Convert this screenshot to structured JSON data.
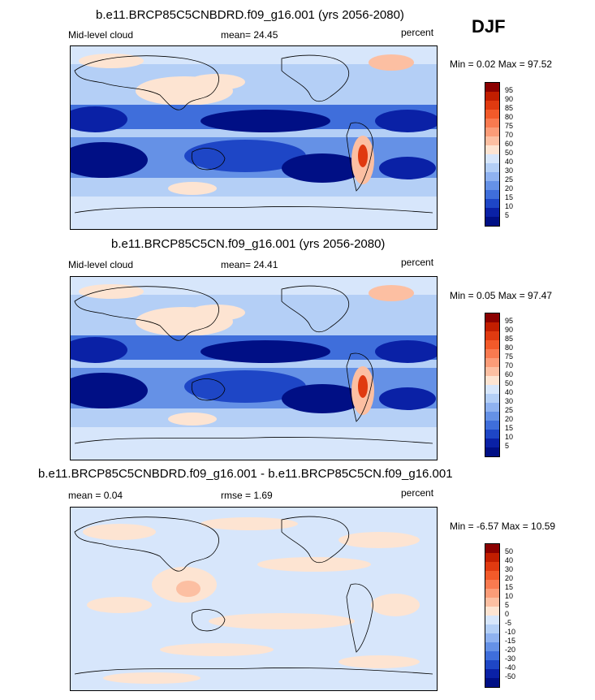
{
  "season": "DJF",
  "panels": [
    {
      "title": "b.e11.BRCP85C5CNBDRD.f09_g16.001 (yrs 2056-2080)",
      "left_label": "Mid-level cloud",
      "center_label": "mean=  24.45",
      "right_label": "percent",
      "minmax": "Min =  0.02 Max =  97.52",
      "colorbar_labels": [
        "95",
        "90",
        "85",
        "80",
        "75",
        "70",
        "60",
        "50",
        "40",
        "30",
        "25",
        "20",
        "15",
        "10",
        "5"
      ]
    },
    {
      "title": "b.e11.BRCP85C5CN.f09_g16.001 (yrs 2056-2080)",
      "left_label": "Mid-level cloud",
      "center_label": "mean=  24.41",
      "right_label": "percent",
      "minmax": "Min =  0.05 Max =  97.47",
      "colorbar_labels": [
        "95",
        "90",
        "85",
        "80",
        "75",
        "70",
        "60",
        "50",
        "40",
        "30",
        "25",
        "20",
        "15",
        "10",
        "5"
      ]
    },
    {
      "title": "b.e11.BRCP85C5CNBDRD.f09_g16.001 - b.e11.BRCP85C5CN.f09_g16.001",
      "left_label": "mean =   0.04",
      "center_label": "rmse =   1.69",
      "right_label": "percent",
      "minmax": "Min =  -6.57 Max =  10.59",
      "colorbar_labels": [
        "50",
        "40",
        "30",
        "20",
        "15",
        "10",
        "5",
        "0",
        "-5",
        "-10",
        "-15",
        "-20",
        "-30",
        "-40",
        "-50"
      ]
    }
  ],
  "colors": {
    "scale": [
      "#8b0000",
      "#c21e00",
      "#e03a10",
      "#f25a2a",
      "#f97a50",
      "#fb9c78",
      "#fcbfa2",
      "#fde4d2",
      "#d7e6fb",
      "#b4cff6",
      "#8fb2f0",
      "#6591e6",
      "#3f6edb",
      "#1e46c6",
      "#0a21a6",
      "#000f85"
    ]
  },
  "chart_data": [
    {
      "type": "heatmap",
      "title": "b.e11.BRCP85C5CNBDRD.f09_g16.001 (yrs 2056-2080)",
      "variable": "Mid-level cloud",
      "units": "percent",
      "mean": 24.45,
      "min": 0.02,
      "max": 97.52,
      "levels": [
        5,
        10,
        15,
        20,
        25,
        30,
        40,
        50,
        60,
        70,
        75,
        80,
        85,
        90,
        95
      ]
    },
    {
      "type": "heatmap",
      "title": "b.e11.BRCP85C5CN.f09_g16.001 (yrs 2056-2080)",
      "variable": "Mid-level cloud",
      "units": "percent",
      "mean": 24.41,
      "min": 0.05,
      "max": 97.47,
      "levels": [
        5,
        10,
        15,
        20,
        25,
        30,
        40,
        50,
        60,
        70,
        75,
        80,
        85,
        90,
        95
      ]
    },
    {
      "type": "heatmap",
      "title": "b.e11.BRCP85C5CNBDRD.f09_g16.001 - b.e11.BRCP85C5CN.f09_g16.001",
      "units": "percent",
      "mean": 0.04,
      "rmse": 1.69,
      "min": -6.57,
      "max": 10.59,
      "levels": [
        -50,
        -40,
        -30,
        -20,
        -15,
        -10,
        -5,
        0,
        5,
        10,
        15,
        20,
        30,
        40,
        50
      ]
    }
  ]
}
